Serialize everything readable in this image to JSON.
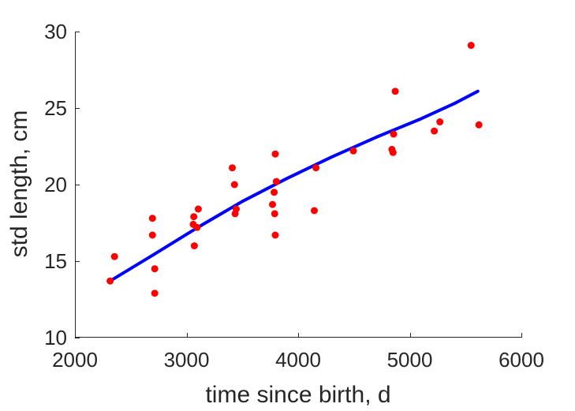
{
  "chart_data": {
    "type": "scatter",
    "title": "",
    "xlabel": "time since birth, d",
    "ylabel": "std length, cm",
    "xlim": [
      2000,
      6000
    ],
    "ylim": [
      10,
      30
    ],
    "xticks": [
      2000,
      3000,
      4000,
      5000,
      6000
    ],
    "yticks": [
      10,
      15,
      20,
      25,
      30
    ],
    "grid": false,
    "colors": {
      "points": "#ff0000",
      "fit": "#0000ff",
      "axis": "#262626"
    },
    "series": [
      {
        "type": "scatter",
        "points": [
          [
            2315,
            13.7
          ],
          [
            2355,
            15.3
          ],
          [
            2695,
            17.8
          ],
          [
            2695,
            16.7
          ],
          [
            2715,
            14.5
          ],
          [
            2715,
            12.9
          ],
          [
            3060,
            17.4
          ],
          [
            3065,
            17.9
          ],
          [
            3070,
            16.0
          ],
          [
            3095,
            17.2
          ],
          [
            3105,
            18.4
          ],
          [
            3410,
            21.1
          ],
          [
            3430,
            20.0
          ],
          [
            3435,
            18.1
          ],
          [
            3445,
            18.4
          ],
          [
            3770,
            18.7
          ],
          [
            3785,
            19.5
          ],
          [
            3790,
            18.1
          ],
          [
            3795,
            22.0
          ],
          [
            3795,
            16.7
          ],
          [
            3805,
            20.2
          ],
          [
            4145,
            18.3
          ],
          [
            4160,
            21.1
          ],
          [
            4495,
            22.2
          ],
          [
            4840,
            22.3
          ],
          [
            4850,
            22.1
          ],
          [
            4855,
            23.3
          ],
          [
            4870,
            26.1
          ],
          [
            5220,
            23.5
          ],
          [
            5270,
            24.1
          ],
          [
            5550,
            29.1
          ],
          [
            5620,
            23.9
          ]
        ]
      },
      {
        "type": "line",
        "points": [
          [
            2315,
            13.7
          ],
          [
            2700,
            15.4
          ],
          [
            3100,
            17.2
          ],
          [
            3500,
            18.9
          ],
          [
            3900,
            20.4
          ],
          [
            4300,
            21.8
          ],
          [
            4700,
            23.1
          ],
          [
            5100,
            24.3
          ],
          [
            5400,
            25.3
          ],
          [
            5610,
            26.1
          ]
        ]
      }
    ]
  }
}
